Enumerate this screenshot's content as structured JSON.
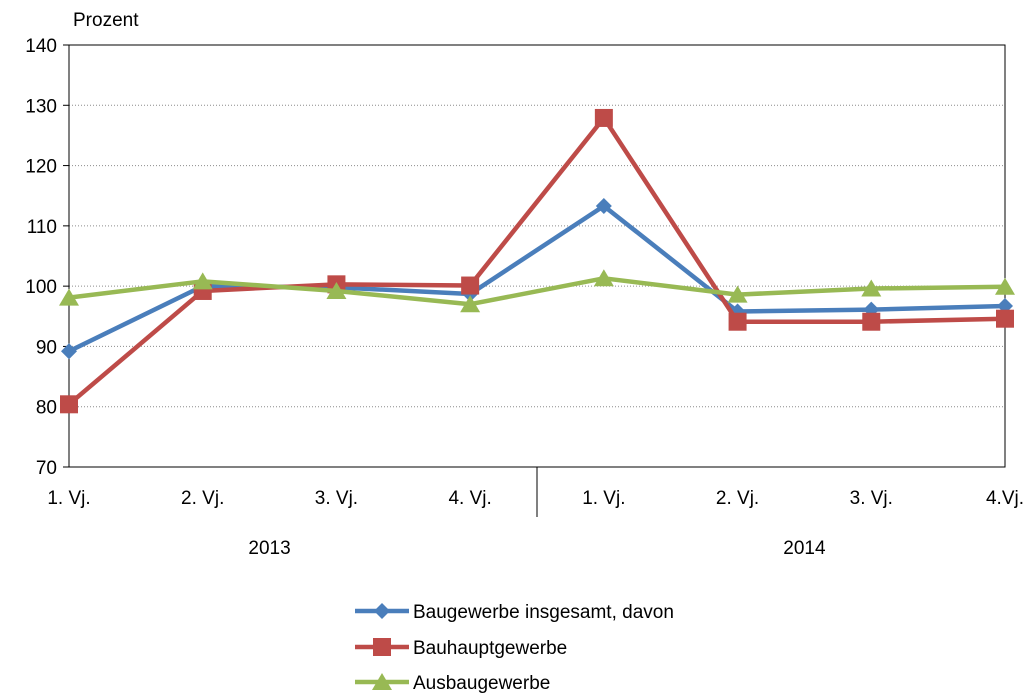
{
  "chart_data": {
    "type": "line",
    "ylabel": "Prozent",
    "ylim": [
      70,
      140
    ],
    "yticks": [
      70,
      80,
      90,
      100,
      110,
      120,
      130,
      140
    ],
    "grid": "horizontal-dotted",
    "categories": [
      "1. Vj.",
      "2. Vj.",
      "3. Vj.",
      "4. Vj.",
      "1. Vj.",
      "2. Vj.",
      "3. Vj.",
      "4.Vj."
    ],
    "groups": [
      {
        "label": "2013",
        "categories": [
          "1. Vj.",
          "2. Vj.",
          "3. Vj.",
          "4. Vj."
        ]
      },
      {
        "label": "2014",
        "categories": [
          "1. Vj.",
          "2. Vj.",
          "3. Vj.",
          "4.Vj."
        ]
      }
    ],
    "legend_position": "bottom",
    "series": [
      {
        "name": "Baugewerbe insgesamt, davon",
        "color": "#4a7ebb",
        "marker": "diamond",
        "values": [
          89.2,
          100.0,
          99.8,
          98.7,
          113.3,
          95.8,
          96.1,
          96.7
        ]
      },
      {
        "name": "Bauhauptgewerbe",
        "color": "#be4b48",
        "marker": "square",
        "values": [
          80.4,
          99.2,
          100.3,
          100.1,
          127.9,
          94.1,
          94.1,
          94.6
        ]
      },
      {
        "name": "Ausbaugewerbe",
        "color": "#98b954",
        "marker": "triangle",
        "values": [
          98.1,
          100.8,
          99.2,
          97.0,
          101.3,
          98.6,
          99.6,
          99.9
        ]
      }
    ]
  }
}
